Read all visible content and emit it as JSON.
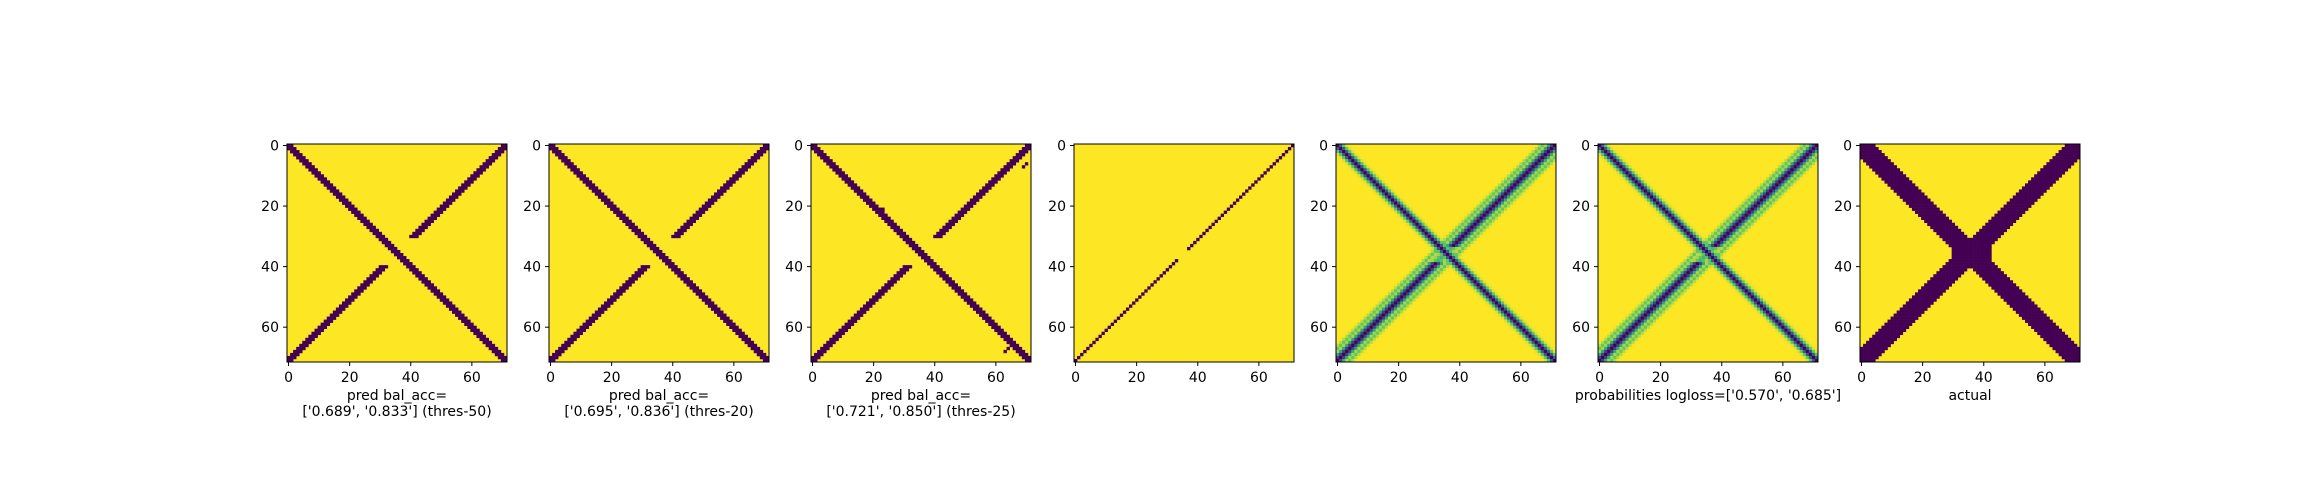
{
  "figure": {
    "background": "#ffffff",
    "colors": {
      "low": "#440154",
      "high": "#fde725"
    }
  },
  "chart_data": [
    {
      "type": "heatmap",
      "pattern": "x-diagonal-broken",
      "colormap": "viridis",
      "xlim": [
        0,
        72
      ],
      "ylim": [
        72,
        0
      ],
      "xticks": [
        "0",
        "20",
        "40",
        "60"
      ],
      "yticks": [
        "0",
        "20",
        "40",
        "60"
      ],
      "xlabel": [
        "pred bal_acc=",
        "['0.689', '0.833'] (thres-50)"
      ]
    },
    {
      "type": "heatmap",
      "pattern": "x-diagonal-broken",
      "colormap": "viridis",
      "xlim": [
        0,
        72
      ],
      "ylim": [
        72,
        0
      ],
      "xticks": [
        "0",
        "20",
        "40",
        "60"
      ],
      "yticks": [
        "0",
        "20",
        "40",
        "60"
      ],
      "xlabel": [
        "pred bal_acc=",
        "['0.695', '0.836'] (thres-20)"
      ]
    },
    {
      "type": "heatmap",
      "pattern": "x-diagonal-broken-noisy",
      "colormap": "viridis",
      "xlim": [
        0,
        72
      ],
      "ylim": [
        72,
        0
      ],
      "xticks": [
        "0",
        "20",
        "40",
        "60"
      ],
      "yticks": [
        "0",
        "20",
        "40",
        "60"
      ],
      "xlabel": [
        "pred bal_acc=",
        "['0.721', '0.850'] (thres-25)"
      ]
    },
    {
      "type": "heatmap",
      "pattern": "anti-diagonal-thin",
      "colormap": "viridis",
      "xlim": [
        0,
        72
      ],
      "ylim": [
        72,
        0
      ],
      "xticks": [
        "0",
        "20",
        "40",
        "60"
      ],
      "yticks": [
        "0",
        "20",
        "40",
        "60"
      ],
      "xlabel": []
    },
    {
      "type": "heatmap",
      "pattern": "x-diagonal-probabilities",
      "colormap": "viridis",
      "xlim": [
        0,
        72
      ],
      "ylim": [
        72,
        0
      ],
      "xticks": [
        "0",
        "20",
        "40",
        "60"
      ],
      "yticks": [
        "0",
        "20",
        "40",
        "60"
      ],
      "xlabel": []
    },
    {
      "type": "heatmap",
      "pattern": "x-diagonal-probabilities",
      "colormap": "viridis",
      "xlim": [
        0,
        72
      ],
      "ylim": [
        72,
        0
      ],
      "xticks": [
        "0",
        "20",
        "40",
        "60"
      ],
      "yticks": [
        "0",
        "20",
        "40",
        "60"
      ],
      "xlabel": [
        "probabilities logloss=['0.570', '0.685']"
      ]
    },
    {
      "type": "heatmap",
      "pattern": "x-diagonal-thick",
      "colormap": "viridis",
      "xlim": [
        0,
        72
      ],
      "ylim": [
        72,
        0
      ],
      "xticks": [
        "0",
        "20",
        "40",
        "60"
      ],
      "yticks": [
        "0",
        "20",
        "40",
        "60"
      ],
      "xlabel": [
        "actual"
      ]
    }
  ]
}
